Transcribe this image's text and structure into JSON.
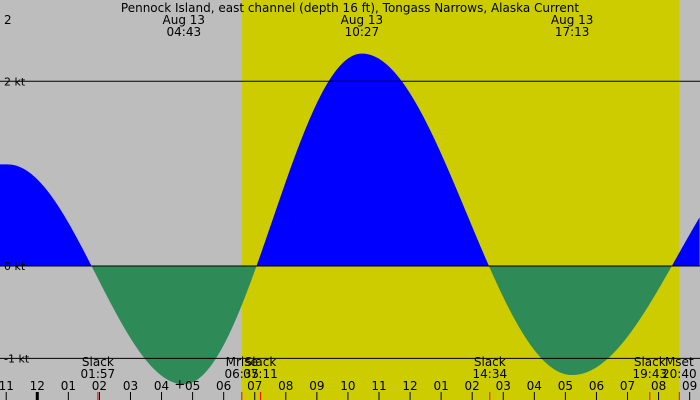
{
  "chart_data": {
    "type": "area",
    "title": "Pennock Island, east channel (depth 16 ft), Tongass Narrows, Alaska Current",
    "y_unit": "kt",
    "y_ticks": [
      {
        "value": 2,
        "label": "2 kt"
      },
      {
        "value": 0,
        "label": "0 kt"
      },
      {
        "value": -1,
        "label": "-1 kt"
      }
    ],
    "ylim": [
      -1.45,
      2.88
    ],
    "xlim_hours": [
      -1.2,
      21.333
    ],
    "grid": "horizontal lines at labeled ticks",
    "daylight_hours": [
      6.583,
      20.667
    ],
    "colors": {
      "night": "#bdbdbd",
      "day": "#cccc00",
      "flood": "#0000ff",
      "ebb": "#2e8b57",
      "grid": "#000000"
    },
    "extremes": [
      {
        "date": "2",
        "time": "",
        "hours": -0.95,
        "value": 1.1,
        "kind": "flood"
      },
      {
        "date": "Aug 13",
        "time": "04:43",
        "hours": 4.717,
        "value": -1.28,
        "kind": "ebb"
      },
      {
        "date": "Aug 13",
        "time": "10:27",
        "hours": 10.45,
        "value": 2.3,
        "kind": "flood"
      },
      {
        "date": "Aug 13",
        "time": "17:13",
        "hours": 17.217,
        "value": -1.18,
        "kind": "ebb"
      },
      {
        "date": "",
        "time": "",
        "hours": 24.0,
        "value": 1.4,
        "kind": "flood"
      }
    ],
    "events": [
      {
        "label": "Slack",
        "time": "01:57",
        "hours": 1.95
      },
      {
        "label": "Mrise",
        "time": "06:35",
        "hours": 6.583
      },
      {
        "label": "Slack",
        "time": "07:11",
        "hours": 7.183
      },
      {
        "label": "Slack",
        "time": "14:34",
        "hours": 14.567
      },
      {
        "label": "Slack",
        "time": "19:43",
        "hours": 19.717
      },
      {
        "label": "Mset",
        "time": "20:40",
        "hours": 20.667
      }
    ],
    "x_tick_labels": [
      "11",
      "12",
      "01",
      "02",
      "03",
      "04",
      "05",
      "06",
      "07",
      "08",
      "09",
      "10",
      "11",
      "12",
      "01",
      "02",
      "03",
      "04",
      "05",
      "06",
      "07",
      "08",
      "09"
    ],
    "x_tick_start_hour": -1,
    "midnight_hour": 0,
    "marker": {
      "hours": 4.717,
      "value": -1.28,
      "symbol": "+"
    }
  }
}
